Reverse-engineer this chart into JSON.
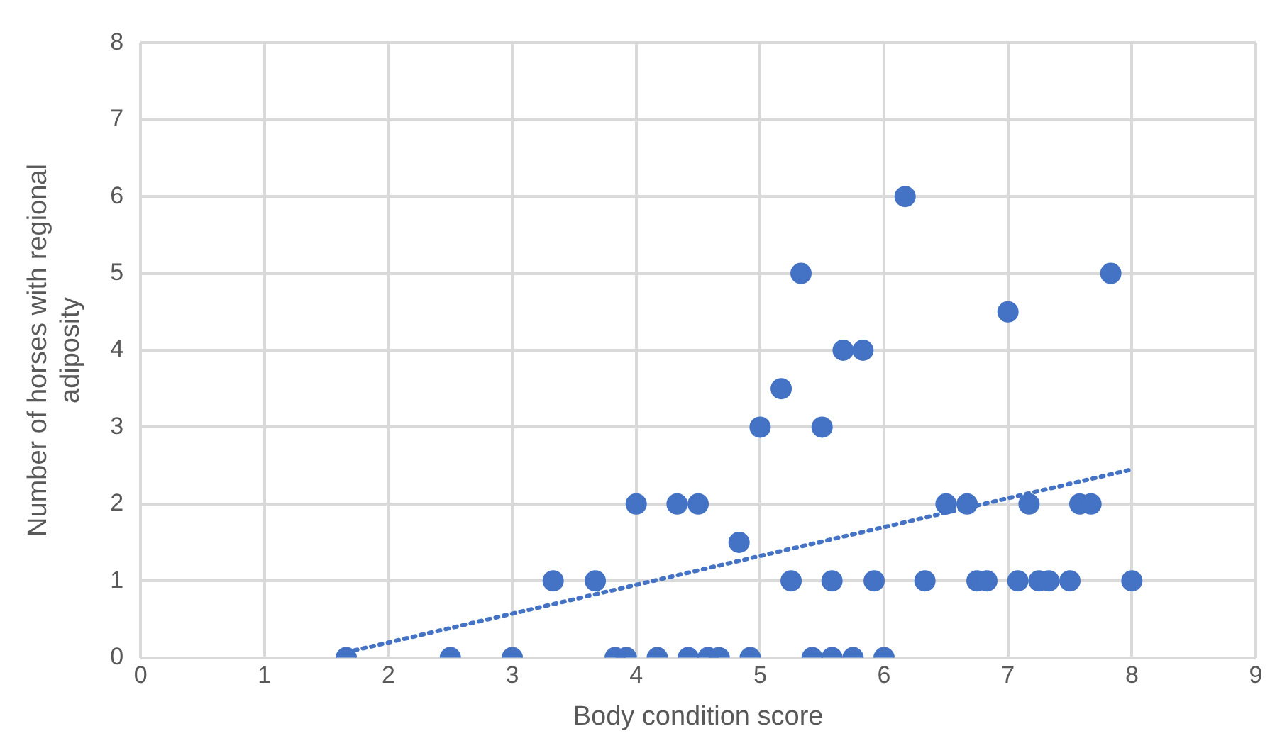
{
  "chart_data": {
    "type": "scatter",
    "xlabel": "Body condition score",
    "ylabel": "Number of horses with regional adiposity",
    "xlim": [
      0,
      9
    ],
    "xticks": [
      0,
      1,
      2,
      3,
      4,
      5,
      6,
      7,
      8,
      9
    ],
    "ylim": [
      0,
      8
    ],
    "yticks": [
      0,
      1,
      2,
      3,
      4,
      5,
      6,
      7,
      8
    ],
    "grid": true,
    "marker": "circle",
    "series": [
      {
        "color": "#4472c4",
        "x": [
          1.66,
          2.5,
          3.0,
          3.83,
          3.92,
          4.17,
          4.42,
          4.58,
          4.67,
          4.92,
          5.42,
          5.58,
          5.75,
          6.0,
          3.33,
          3.67,
          5.25,
          5.58,
          5.92,
          6.33,
          6.75,
          6.83,
          7.08,
          7.25,
          7.33,
          7.5,
          8.0,
          4.83,
          4.0,
          4.33,
          4.5,
          6.5,
          6.67,
          7.17,
          7.58,
          7.67,
          5.0,
          5.5,
          5.17,
          5.67,
          5.83,
          7.0,
          5.33,
          7.83,
          6.17
        ],
        "values": [
          0,
          0,
          0,
          0,
          0,
          0,
          0,
          0,
          0,
          0,
          0,
          0,
          0,
          0,
          1,
          1,
          1,
          1,
          1,
          1,
          1,
          1,
          1,
          1,
          1,
          1,
          1,
          1.5,
          2,
          2,
          2,
          2,
          2,
          2,
          2,
          2,
          3,
          3,
          3.5,
          4,
          4,
          4.5,
          5,
          5,
          6
        ]
      },
      {
        "type": "line",
        "color": "#4472c4",
        "line_style": "dotted",
        "marker": "none",
        "x": [
          1.66,
          8.0
        ],
        "values": [
          0.07,
          2.45
        ]
      }
    ]
  }
}
